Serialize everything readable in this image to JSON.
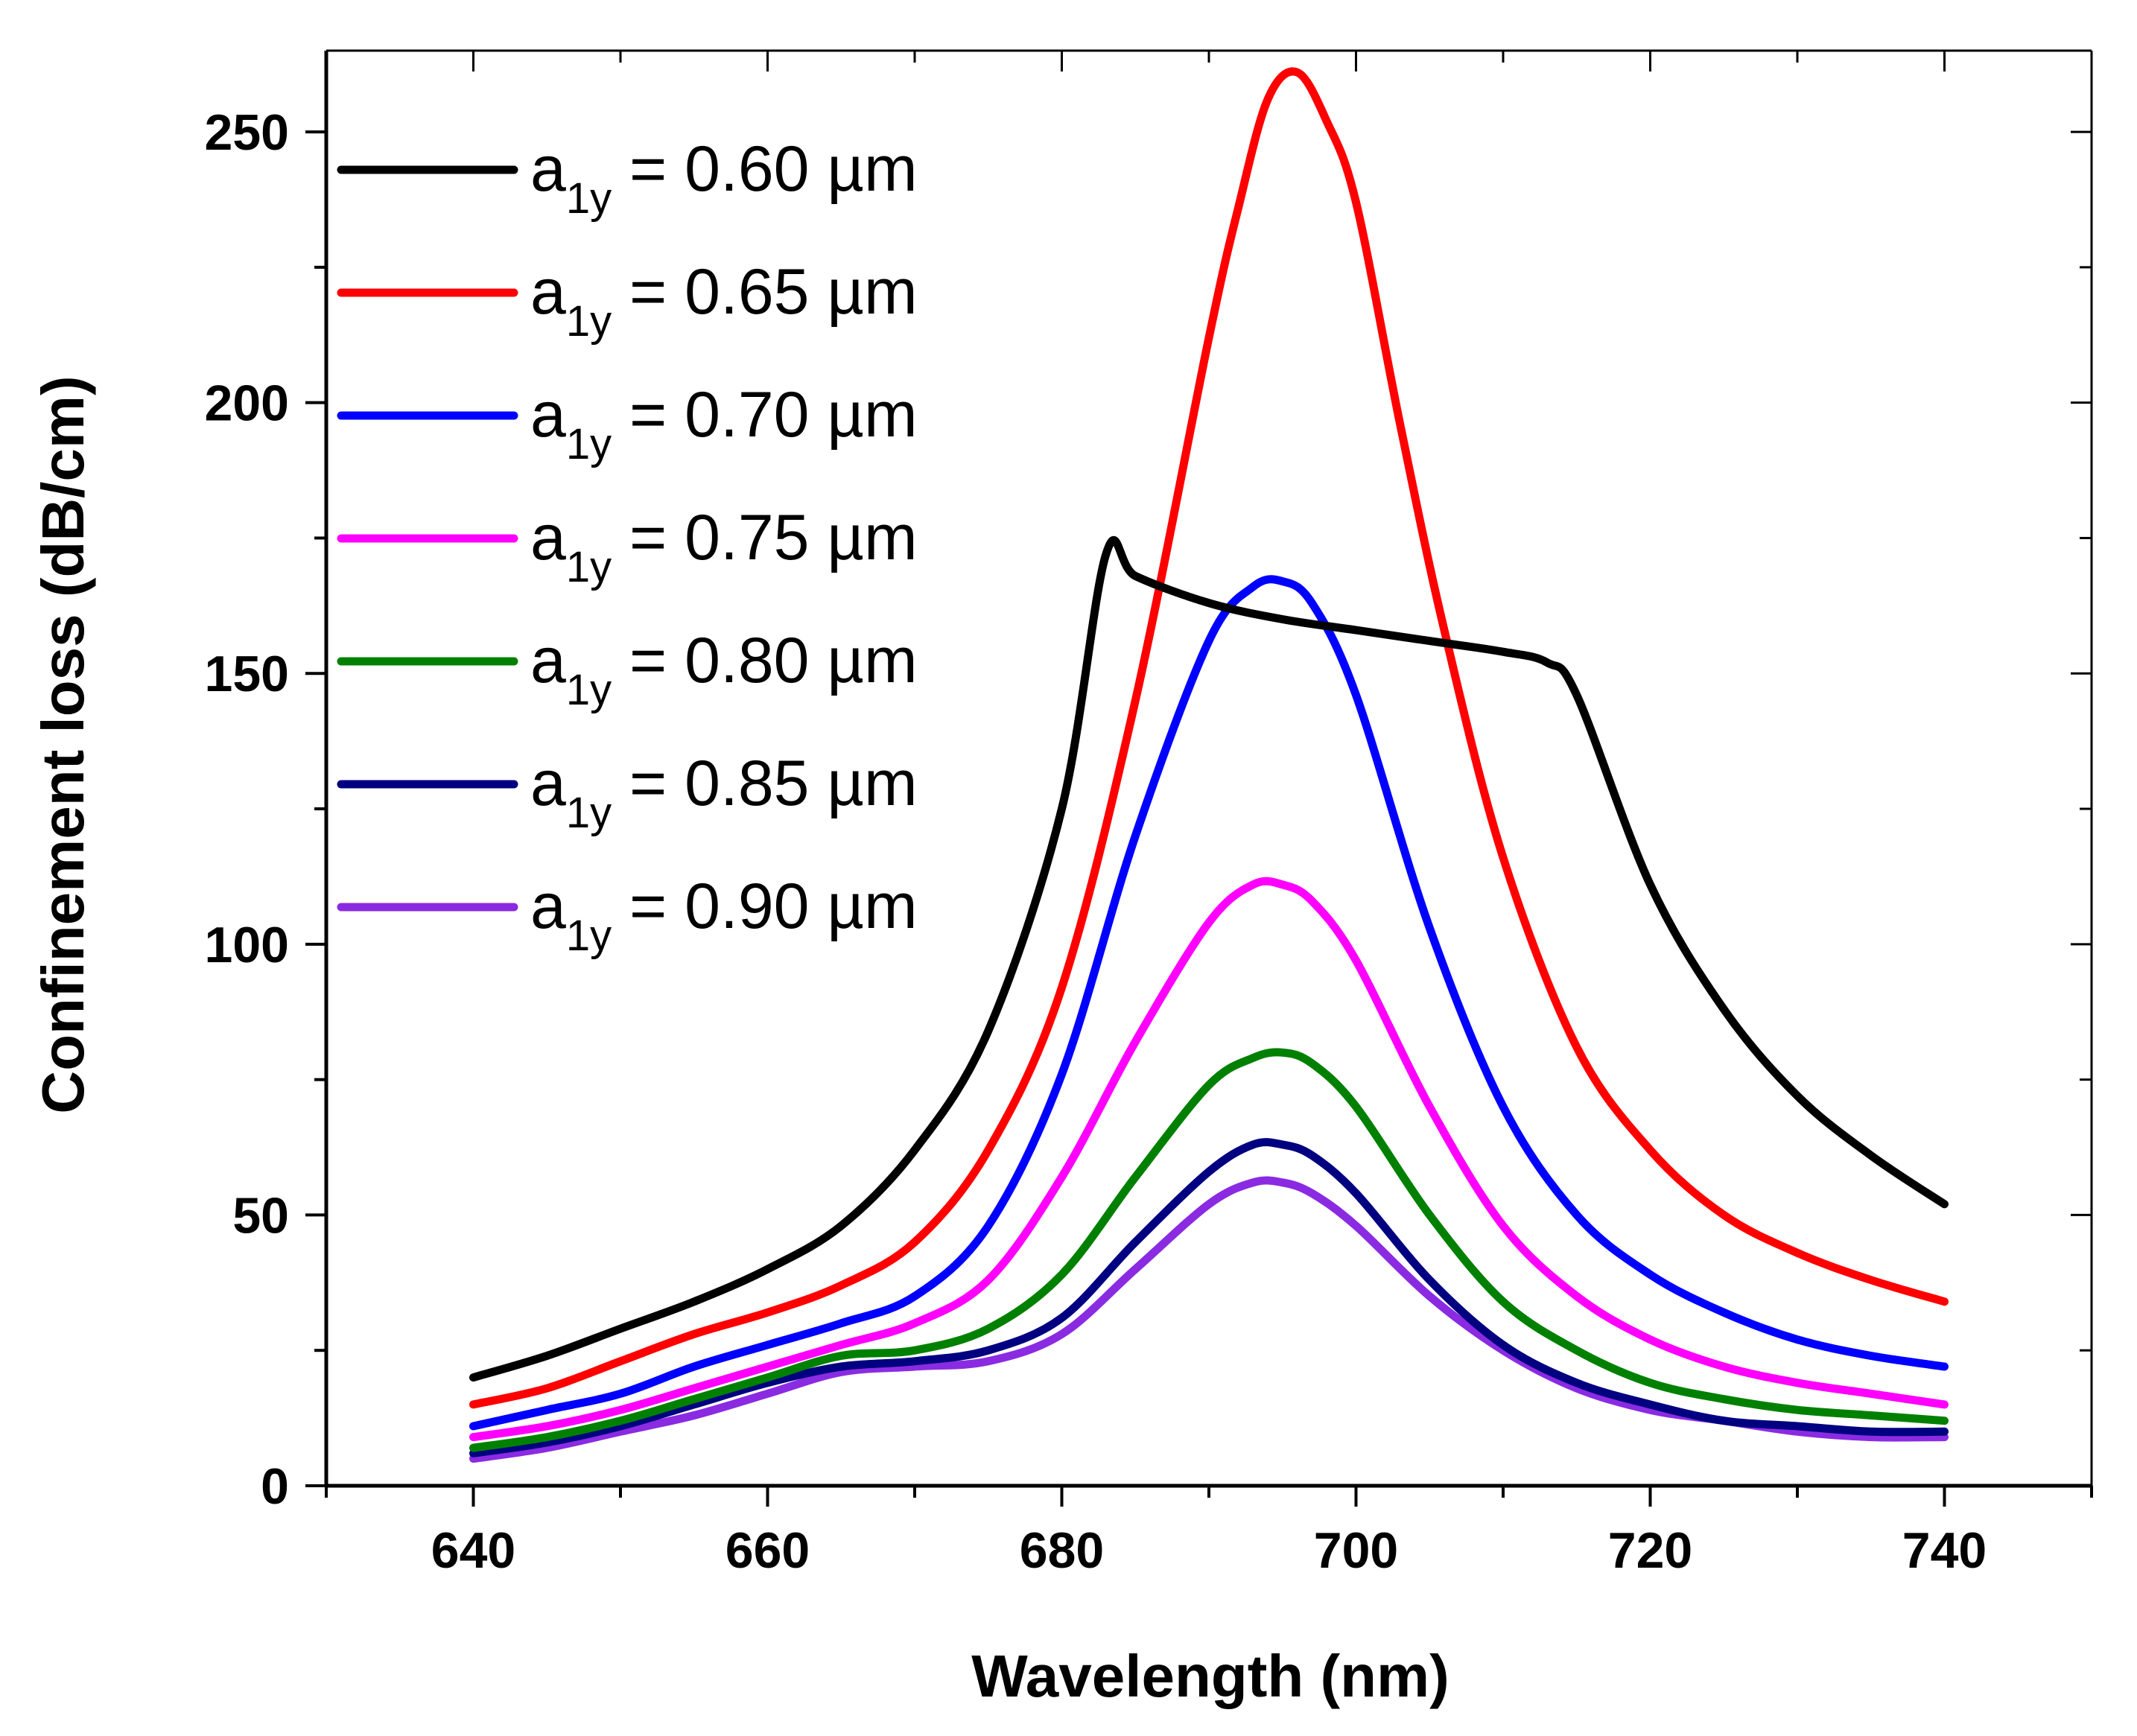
{
  "chart_data": {
    "type": "line",
    "title": "",
    "xlabel": "Wavelength (nm)",
    "ylabel": "Confinement loss (dB/cm)",
    "xlim": [
      630,
      750
    ],
    "ylim": [
      0,
      265
    ],
    "xticks": [
      640,
      660,
      680,
      700,
      720,
      740
    ],
    "yticks": [
      0,
      50,
      100,
      150,
      200,
      250
    ],
    "xtick_labels": [
      "640",
      "660",
      "680",
      "700",
      "720",
      "740"
    ],
    "ytick_labels": [
      "0",
      "50",
      "100",
      "150",
      "200",
      "250"
    ],
    "grid": false,
    "legend_position": "top-left",
    "series": [
      {
        "name": "a1y = 0.60 µm",
        "label_main": "a",
        "label_sub": "1y",
        "label_rest": " = 0.60 µm",
        "color": "#000000",
        "x": [
          640,
          645,
          650,
          655,
          660,
          665,
          670,
          675,
          680,
          683,
          685,
          690,
          695,
          700,
          705,
          710,
          713,
          715,
          720,
          725,
          730,
          735,
          740
        ],
        "y": [
          20,
          24,
          29,
          34,
          40,
          48,
          62,
          84,
          125,
          172,
          168,
          163,
          160,
          158,
          156,
          154,
          152,
          146,
          111,
          88,
          72,
          61,
          52
        ]
      },
      {
        "name": "a1y = 0.65 µm",
        "label_main": "a",
        "label_sub": "1y",
        "label_rest": " = 0.65 µm",
        "color": "#ff0000",
        "x": [
          640,
          645,
          650,
          655,
          660,
          665,
          670,
          675,
          680,
          685,
          690,
          692,
          694,
          696,
          698,
          700,
          703,
          706,
          710,
          715,
          720,
          725,
          730,
          735,
          740
        ],
        "y": [
          15,
          18,
          23,
          28,
          32,
          37,
          45,
          62,
          92,
          145,
          212,
          236,
          256,
          261,
          252,
          237,
          196,
          158,
          116,
          81,
          62,
          50,
          43,
          38,
          34
        ]
      },
      {
        "name": "a1y = 0.70 µm",
        "label_main": "a",
        "label_sub": "1y",
        "label_rest": " = 0.70 µm",
        "color": "#0000ff",
        "x": [
          640,
          645,
          650,
          655,
          660,
          665,
          670,
          675,
          680,
          685,
          690,
          693,
          695,
          697,
          700,
          705,
          710,
          715,
          720,
          725,
          730,
          735,
          740
        ],
        "y": [
          11,
          14,
          17,
          22,
          26,
          30,
          35,
          48,
          76,
          120,
          156,
          166,
          167,
          163,
          146,
          103,
          70,
          50,
          39,
          32,
          27,
          24,
          22
        ]
      },
      {
        "name": "a1y = 0.75 µm",
        "label_main": "a",
        "label_sub": "1y",
        "label_rest": " = 0.75 µm",
        "color": "#ff00ff",
        "x": [
          640,
          645,
          650,
          655,
          660,
          665,
          670,
          675,
          680,
          685,
          690,
          693,
          695,
          697,
          700,
          705,
          710,
          715,
          720,
          725,
          730,
          735,
          740
        ],
        "y": [
          9,
          11,
          14,
          18,
          22,
          26,
          30,
          38,
          57,
          82,
          104,
          111,
          111,
          108,
          97,
          70,
          48,
          35,
          27,
          22,
          19,
          17,
          15
        ]
      },
      {
        "name": "a1y = 0.80 µm",
        "label_main": "a",
        "label_sub": "1y",
        "label_rest": " = 0.80 µm",
        "color": "#008000",
        "x": [
          640,
          645,
          650,
          655,
          660,
          665,
          670,
          675,
          680,
          685,
          690,
          693,
          695,
          697,
          700,
          705,
          710,
          715,
          720,
          725,
          730,
          735,
          740
        ],
        "y": [
          7,
          9,
          12,
          16,
          20,
          24,
          25,
          29,
          39,
          57,
          74,
          79,
          80,
          78,
          70,
          50,
          34,
          25,
          19,
          16,
          14,
          13,
          12
        ]
      },
      {
        "name": "a1y = 0.85 µm",
        "label_main": "a",
        "label_sub": "1y",
        "label_rest": " = 0.85 µm",
        "color": "#000080",
        "x": [
          640,
          645,
          650,
          655,
          660,
          665,
          670,
          675,
          680,
          685,
          690,
          693,
          695,
          697,
          700,
          705,
          710,
          715,
          720,
          725,
          730,
          735,
          740
        ],
        "y": [
          6,
          8,
          11,
          15,
          19,
          22,
          23,
          25,
          31,
          45,
          58,
          63,
          63,
          61,
          54,
          38,
          26,
          19,
          15,
          12,
          11,
          10,
          10
        ]
      },
      {
        "name": "a1y = 0.90 µm",
        "label_main": "a",
        "label_sub": "1y",
        "label_rest": " = 0.90 µm",
        "color": "#8a2be2",
        "x": [
          640,
          645,
          650,
          655,
          660,
          665,
          670,
          675,
          680,
          685,
          690,
          693,
          695,
          697,
          700,
          705,
          710,
          715,
          720,
          725,
          730,
          735,
          740
        ],
        "y": [
          5,
          7,
          10,
          13,
          17,
          21,
          22,
          23,
          28,
          40,
          52,
          56,
          56,
          54,
          48,
          35,
          25,
          18,
          14,
          12,
          10,
          9,
          9
        ]
      }
    ]
  }
}
